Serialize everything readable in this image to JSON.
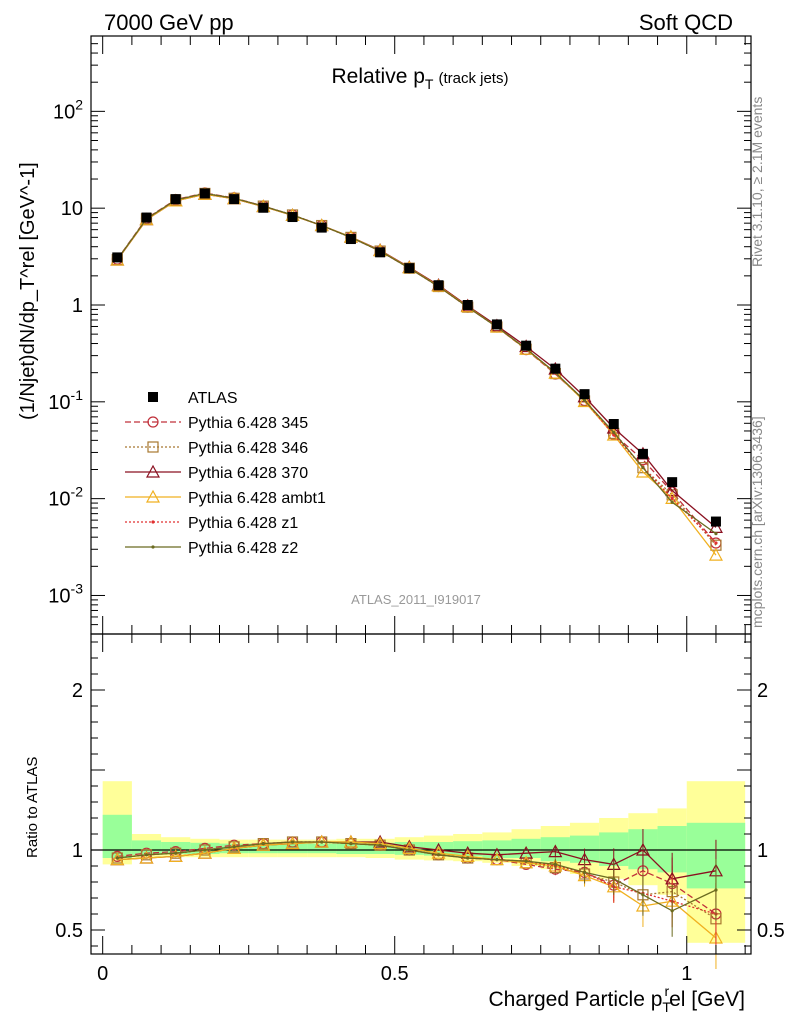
{
  "header": {
    "left": "7000 GeV pp",
    "right": "Soft QCD"
  },
  "side_labels": {
    "rivet": "Rivet 3.1.10, ≥ 2.1M events",
    "mcplots": "mcplots.cern.ch [arXiv:1306.3436]"
  },
  "analysis_id": "ATLAS_2011_I919017",
  "colors": {
    "band_inner": "#99ff99",
    "band_outer": "#ffff99"
  },
  "chart_data": {
    "type": "line",
    "title": "Relative p_T (track jets)",
    "title_main": "Relative p",
    "title_sub": "T",
    "title_suffix": "(track jets)",
    "xlabel": "Charged Particle p_T^rel [GeV]",
    "xlabel_main": "Charged Particle p",
    "xlabel_sub": "T",
    "xlabel_sup": "r",
    "xlabel_suffix": "el [GeV]",
    "ylabel": "(1/Njet)dN/dp_T^rel [GeV^-1]",
    "ratio_ylabel": "Ratio to ATLAS",
    "xlim": [
      -0.02,
      1.11
    ],
    "ylim_main": [
      0.0004,
      600
    ],
    "ylim_ratio": [
      0.35,
      2.35
    ],
    "y_scale_main": "log",
    "x_ticks": [
      "0",
      "0.5",
      "1"
    ],
    "y_ticks_main": [
      "10^-3",
      "10^-2",
      "10^-1",
      "1",
      "10",
      "10^2"
    ],
    "y_ticks_ratio": [
      "0.5",
      "1",
      "2"
    ],
    "legend_position": "lower-left",
    "x": [
      0.025,
      0.075,
      0.125,
      0.175,
      0.225,
      0.275,
      0.325,
      0.375,
      0.425,
      0.475,
      0.525,
      0.575,
      0.625,
      0.675,
      0.725,
      0.775,
      0.825,
      0.875,
      0.925,
      0.975,
      1.05
    ],
    "data": {
      "name": "ATLAS",
      "values": [
        3.1,
        8.0,
        12.4,
        14.2,
        12.4,
        10.1,
        8.1,
        6.3,
        4.8,
        3.5,
        2.4,
        1.6,
        1.0,
        0.63,
        0.38,
        0.22,
        0.12,
        0.059,
        0.029,
        0.0148,
        0.0058
      ]
    },
    "ratio_bands": {
      "x_edges": [
        0,
        0.05,
        0.1,
        0.15,
        0.2,
        0.25,
        0.3,
        0.35,
        0.4,
        0.45,
        0.5,
        0.55,
        0.6,
        0.65,
        0.7,
        0.75,
        0.8,
        0.85,
        0.9,
        0.95,
        1.0,
        1.1
      ],
      "inner": [
        [
          0.95,
          1.22
        ],
        [
          0.97,
          1.06
        ],
        [
          0.975,
          1.05
        ],
        [
          0.975,
          1.045
        ],
        [
          0.98,
          1.04
        ],
        [
          0.98,
          1.04
        ],
        [
          0.98,
          1.04
        ],
        [
          0.98,
          1.04
        ],
        [
          0.975,
          1.04
        ],
        [
          0.975,
          1.045
        ],
        [
          0.97,
          1.05
        ],
        [
          0.965,
          1.05
        ],
        [
          0.96,
          1.055
        ],
        [
          0.95,
          1.06
        ],
        [
          0.95,
          1.07
        ],
        [
          0.93,
          1.08
        ],
        [
          0.92,
          1.09
        ],
        [
          0.9,
          1.11
        ],
        [
          0.88,
          1.13
        ],
        [
          0.86,
          1.15
        ],
        [
          0.76,
          1.17
        ]
      ],
      "outer": [
        [
          0.91,
          1.43
        ],
        [
          0.95,
          1.1
        ],
        [
          0.955,
          1.08
        ],
        [
          0.955,
          1.07
        ],
        [
          0.955,
          1.065
        ],
        [
          0.955,
          1.065
        ],
        [
          0.955,
          1.065
        ],
        [
          0.955,
          1.065
        ],
        [
          0.955,
          1.07
        ],
        [
          0.95,
          1.07
        ],
        [
          0.94,
          1.08
        ],
        [
          0.935,
          1.09
        ],
        [
          0.93,
          1.1
        ],
        [
          0.92,
          1.11
        ],
        [
          0.9,
          1.13
        ],
        [
          0.88,
          1.15
        ],
        [
          0.85,
          1.17
        ],
        [
          0.82,
          1.2
        ],
        [
          0.78,
          1.23
        ],
        [
          0.72,
          1.26
        ],
        [
          0.42,
          1.43
        ]
      ]
    },
    "series": [
      {
        "name": "Pythia 6.428 345",
        "color": "#c0303a",
        "dash": "6,3",
        "marker": "circle",
        "ratio": [
          0.96,
          0.98,
          0.99,
          1.01,
          1.03,
          1.04,
          1.05,
          1.05,
          1.04,
          1.03,
          1.0,
          0.97,
          0.95,
          0.94,
          0.91,
          0.88,
          0.86,
          0.78,
          0.87,
          0.79,
          0.6
        ]
      },
      {
        "name": "Pythia 6.428 346",
        "color": "#a87830",
        "dash": "2,2",
        "marker": "square",
        "ratio": [
          0.95,
          0.97,
          0.98,
          1.0,
          1.02,
          1.04,
          1.05,
          1.05,
          1.04,
          1.03,
          1.0,
          0.97,
          0.95,
          0.94,
          0.92,
          0.89,
          0.85,
          0.8,
          0.72,
          0.74,
          0.57
        ]
      },
      {
        "name": "Pythia 6.428 370",
        "color": "#8a1020",
        "dash": "",
        "marker": "triangle",
        "ratio": [
          0.94,
          0.95,
          0.96,
          0.98,
          1.01,
          1.03,
          1.04,
          1.05,
          1.05,
          1.05,
          1.02,
          1.0,
          0.98,
          0.97,
          0.98,
          0.99,
          0.94,
          0.91,
          1.0,
          0.82,
          0.87
        ]
      },
      {
        "name": "Pythia 6.428 ambt1",
        "color": "#f0b020",
        "dash": "",
        "marker": "triangle",
        "ratio": [
          0.94,
          0.95,
          0.96,
          0.98,
          1.01,
          1.03,
          1.04,
          1.05,
          1.05,
          1.04,
          1.01,
          0.98,
          0.96,
          0.94,
          0.92,
          0.9,
          0.84,
          0.77,
          0.65,
          0.68,
          0.45
        ]
      },
      {
        "name": "Pythia 6.428 z1",
        "color": "#e03030",
        "dash": "2,2",
        "marker": "dot",
        "ratio": [
          0.95,
          0.97,
          0.98,
          1.0,
          1.02,
          1.04,
          1.05,
          1.05,
          1.04,
          1.03,
          1.0,
          0.97,
          0.95,
          0.94,
          0.93,
          0.9,
          0.86,
          0.77,
          0.73,
          0.68,
          0.6
        ]
      },
      {
        "name": "Pythia 6.428 z2",
        "color": "#6b6b20",
        "dash": "",
        "marker": "dot",
        "ratio": [
          0.95,
          0.97,
          0.98,
          1.0,
          1.02,
          1.04,
          1.05,
          1.05,
          1.04,
          1.03,
          1.0,
          0.97,
          0.95,
          0.94,
          0.93,
          0.91,
          0.86,
          0.82,
          0.72,
          0.62,
          0.75
        ]
      }
    ]
  }
}
